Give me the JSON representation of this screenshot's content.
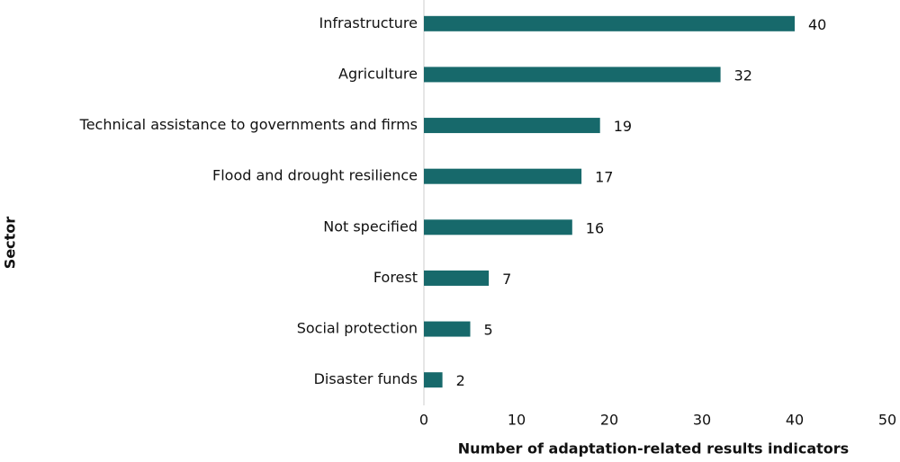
{
  "chart_data": {
    "type": "barh",
    "categories": [
      "Infrastructure",
      "Agriculture",
      "Technical assistance to governments and firms",
      "Flood and drought resilience",
      "Not specified",
      "Forest",
      "Social protection",
      "Disaster funds"
    ],
    "values": [
      40,
      32,
      19,
      17,
      16,
      7,
      5,
      2
    ],
    "color": "#17696b",
    "xlim": [
      0,
      50
    ],
    "xticks": [
      0,
      10,
      20,
      30,
      40,
      50
    ],
    "xlabel": "Number of adaptation-related results indicators",
    "ylabel": "Sector",
    "grid": false
  }
}
